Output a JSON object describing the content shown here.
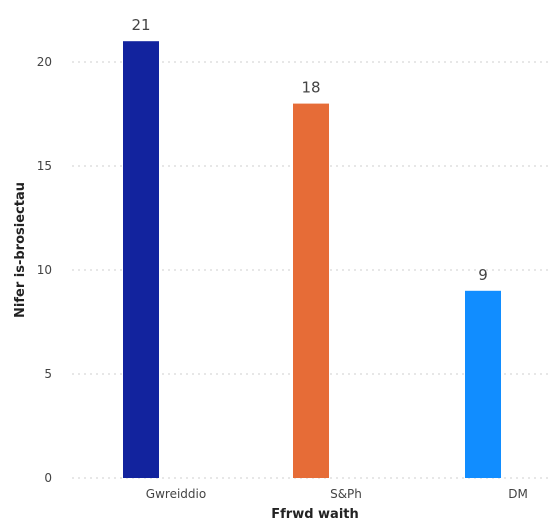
{
  "chart_data": {
    "type": "bar",
    "categories": [
      "Gwreiddio",
      "S&Ph",
      "DM"
    ],
    "values": [
      21,
      18,
      9
    ],
    "colors": [
      "#12239e",
      "#e66c37",
      "#118dff"
    ],
    "xlabel": "Ffrwd waith",
    "ylabel": "Nifer is-brosiectau",
    "ylim": [
      0,
      21
    ],
    "yticks": [
      0,
      5,
      10,
      15,
      20
    ],
    "grid": true,
    "data_labels": true
  }
}
